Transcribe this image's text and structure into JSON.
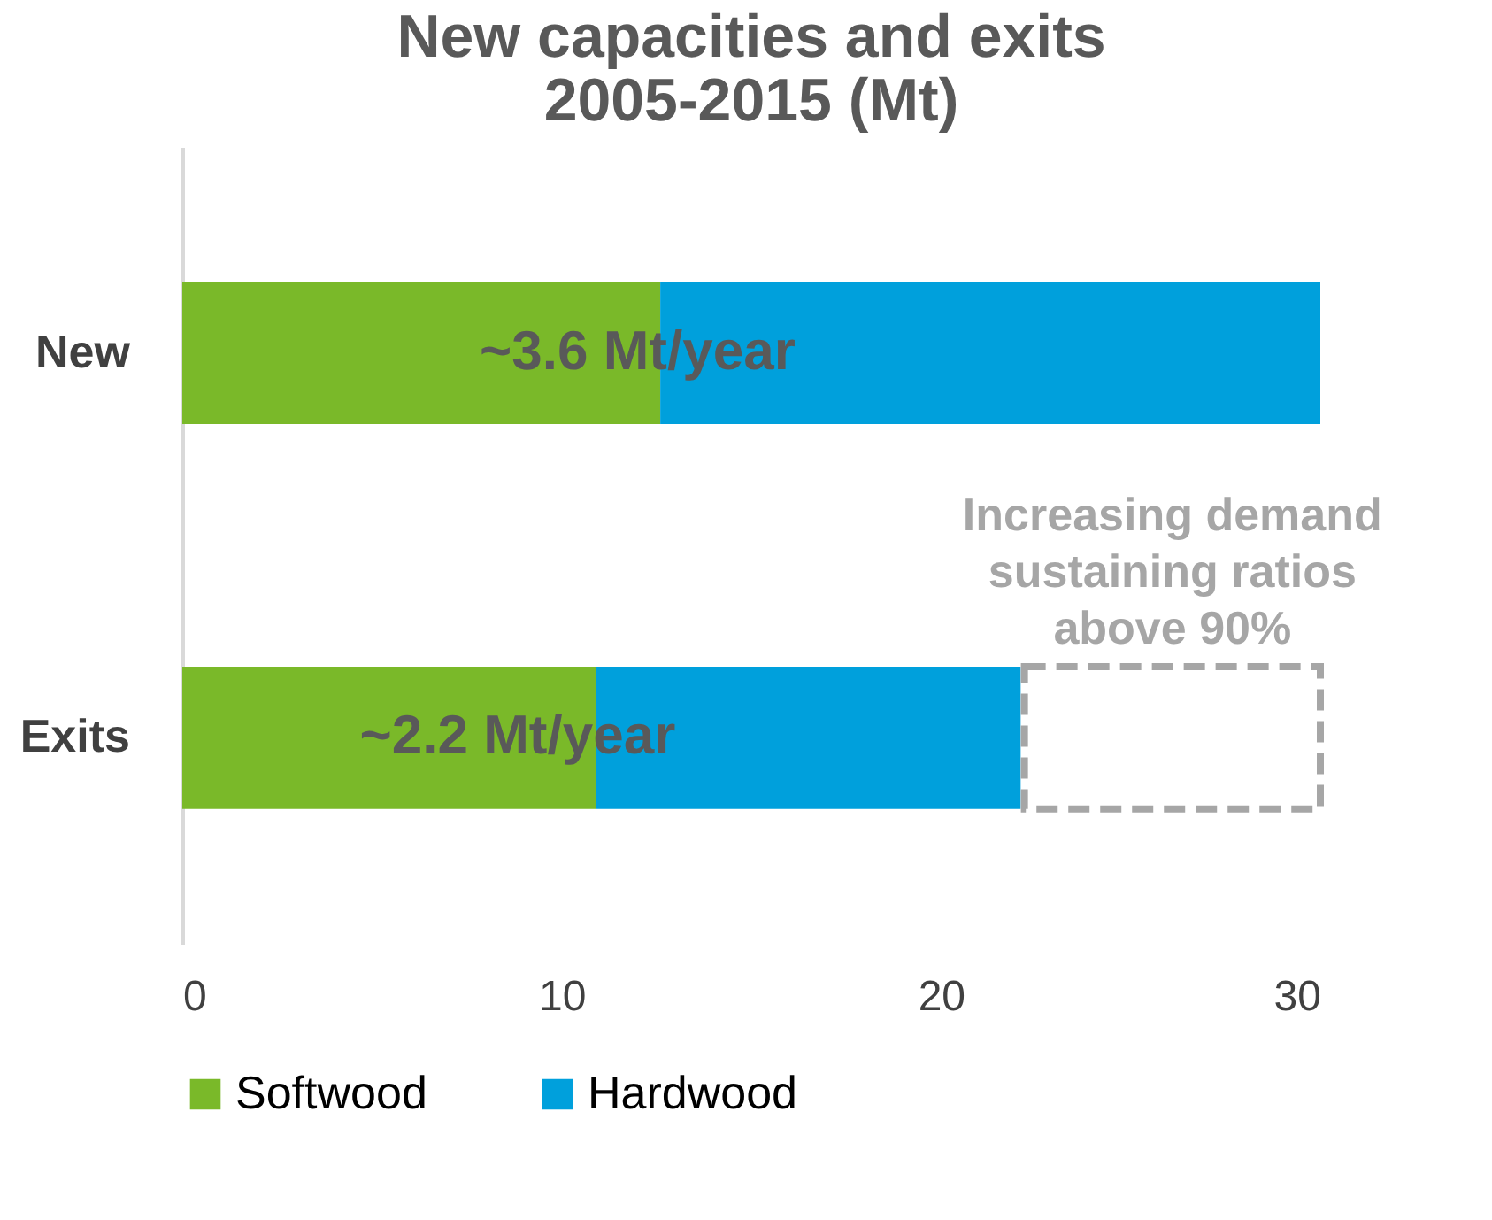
{
  "chart_data": {
    "type": "bar",
    "orientation": "horizontal",
    "stacked": true,
    "title": "New capacities and exits\n2005-2015 (Mt)",
    "categories": [
      "New",
      "Exits"
    ],
    "series": [
      {
        "name": "Softwood",
        "color": "#7ab929",
        "values": [
          12.6,
          10.9
        ]
      },
      {
        "name": "Hardwood",
        "color": "#00a0dc",
        "values": [
          17.4,
          11.2
        ]
      }
    ],
    "xlim": [
      0,
      30
    ],
    "xticks": [
      0,
      10,
      20,
      30
    ],
    "legend": "bottom",
    "annotations": [
      "~3.6 Mt/year",
      "~2.2 Mt/year",
      "Increasing demand\nsustaining ratios\nabove 90%"
    ]
  }
}
